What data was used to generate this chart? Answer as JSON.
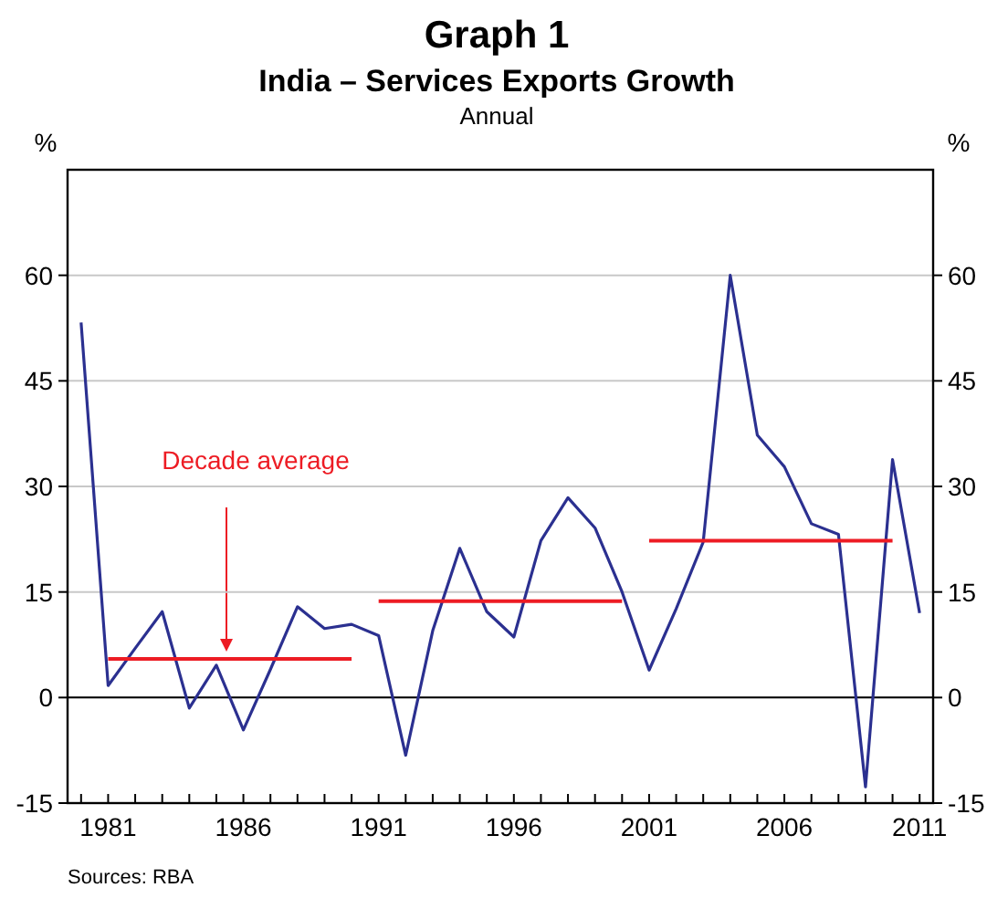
{
  "chart_data": {
    "type": "line",
    "title": "Graph 1",
    "subtitle": "India – Services Exports Growth",
    "annotations": [
      "Annual",
      "Sources: RBA",
      "Decade average"
    ],
    "ylabel": "%",
    "y2label": "%",
    "xlim": [
      1979.5,
      2011.5
    ],
    "xticks": [
      1981,
      1986,
      1991,
      1996,
      2001,
      2006,
      2011
    ],
    "ylim": [
      -15,
      75
    ],
    "yticks": [
      -15,
      0,
      15,
      30,
      45,
      60
    ],
    "y2lim": [
      -15,
      75
    ],
    "y2ticks": [
      -15,
      0,
      15,
      30,
      45,
      60
    ],
    "grid": "y",
    "marker": "none",
    "line_style": "solid",
    "ref_lines": [
      {
        "axis": "y",
        "value": 0,
        "color": "#000000"
      }
    ],
    "series": [
      {
        "color": "#2b3090",
        "x": [
          1980,
          1981,
          1982,
          1983,
          1984,
          1985,
          1986,
          1987,
          1988,
          1989,
          1990,
          1991,
          1992,
          1993,
          1994,
          1995,
          1996,
          1997,
          1998,
          1999,
          2000,
          2001,
          2002,
          2003,
          2004,
          2005,
          2006,
          2007,
          2008,
          2009,
          2010,
          2011
        ],
        "values": [
          53.3,
          1.7,
          7,
          12.2,
          -1.5,
          4.6,
          -4.6,
          4,
          12.9,
          9.8,
          10.4,
          8.8,
          -8.2,
          9.5,
          21.2,
          12.2,
          8.6,
          22.3,
          28.4,
          24.1,
          15,
          3.9,
          12.6,
          22.1,
          60,
          37.3,
          32.8,
          24.7,
          23.2,
          -12.7,
          33.8,
          12
        ]
      },
      {
        "color": "#ed1c24",
        "x": [
          1981,
          1990
        ],
        "values": [
          5.5,
          5.5
        ]
      },
      {
        "color": "#ed1c24",
        "x": [
          1991,
          2000
        ],
        "values": [
          13.7,
          13.7
        ]
      },
      {
        "color": "#ed1c24",
        "x": [
          2001,
          2010
        ],
        "values": [
          22.3,
          22.3
        ]
      }
    ]
  }
}
